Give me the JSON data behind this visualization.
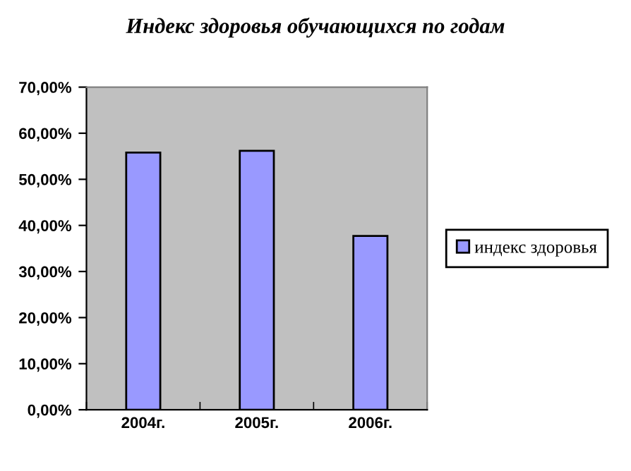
{
  "chart_data": {
    "type": "bar",
    "title": "Индекс здоровья обучающихся по годам",
    "categories": [
      "2004г.",
      "2005г.",
      "2006г."
    ],
    "series": [
      {
        "name": "индекс здоровья",
        "color": "#9999ff",
        "values": [
          0.558,
          0.562,
          0.377
        ]
      }
    ],
    "ylim": [
      0,
      0.7
    ],
    "yticks": [
      {
        "value": 0,
        "label": "0,00%"
      },
      {
        "value": 0.1,
        "label": "10,00%"
      },
      {
        "value": 0.2,
        "label": "20,00%"
      },
      {
        "value": 0.3,
        "label": "30,00%"
      },
      {
        "value": 0.4,
        "label": "40,00%"
      },
      {
        "value": 0.5,
        "label": "50,00%"
      },
      {
        "value": 0.6,
        "label": "60,00%"
      },
      {
        "value": 0.7,
        "label": "70,00%"
      }
    ],
    "grid": false,
    "legend": "right"
  }
}
